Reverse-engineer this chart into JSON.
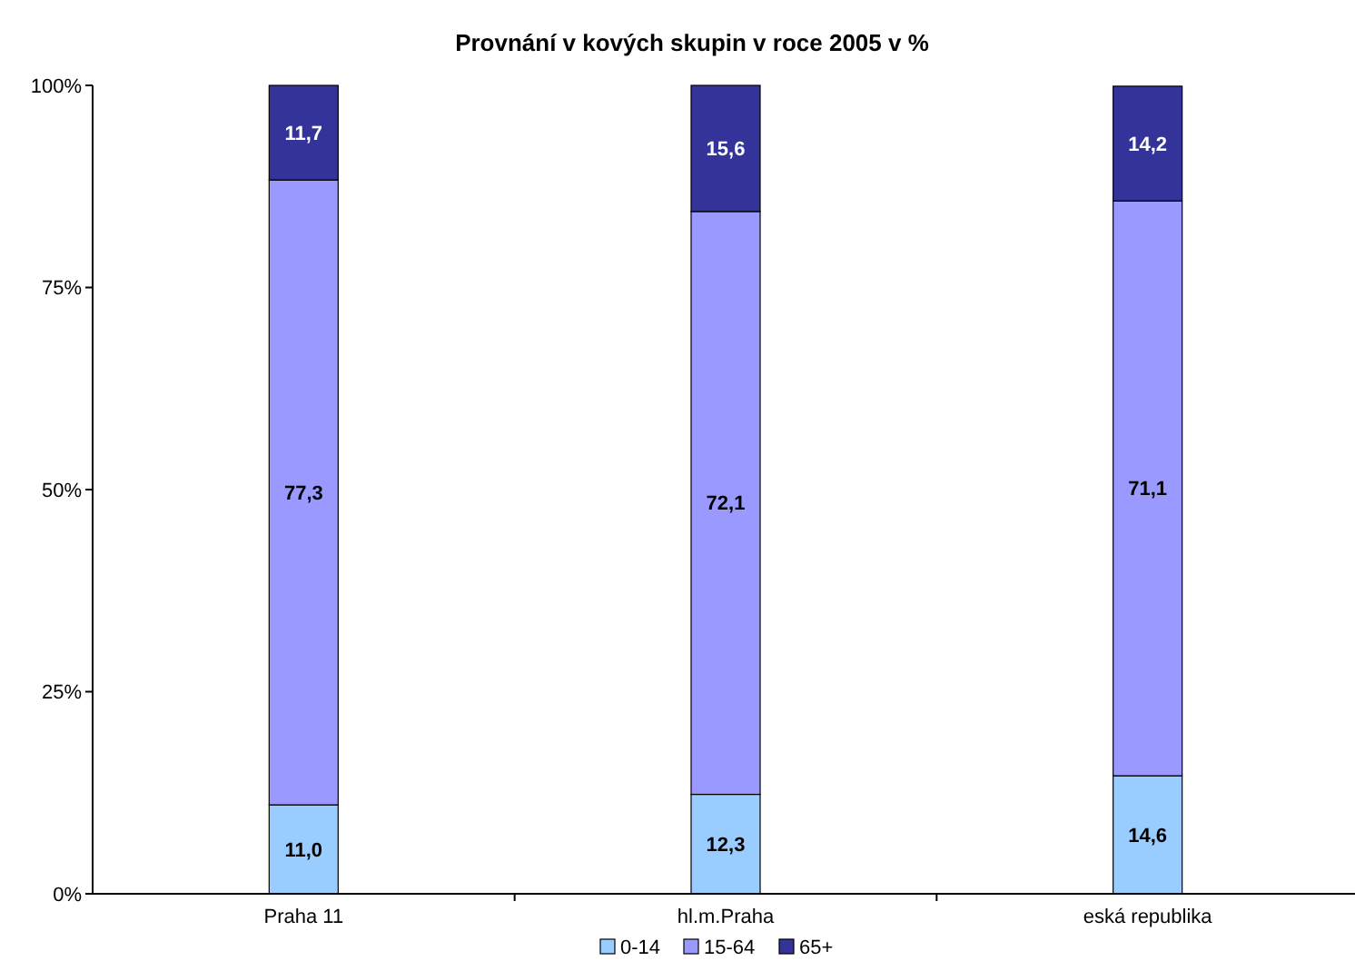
{
  "chart_data": {
    "type": "bar",
    "stacked": true,
    "title": "Provnání v  kových skupin v roce 2005 v %",
    "categories": [
      "Praha 11",
      "hl.m.Praha",
      "eská republika"
    ],
    "series": [
      {
        "name": "0-14",
        "color": "#99ccff",
        "values": [
          11.0,
          12.3,
          14.6
        ],
        "value_labels": [
          "11,0",
          "12,3",
          "14,6"
        ]
      },
      {
        "name": "15-64",
        "color": "#9999ff",
        "values": [
          77.3,
          72.1,
          71.1
        ],
        "value_labels": [
          "77,3",
          "72,1",
          "71,1"
        ]
      },
      {
        "name": "65+",
        "color": "#333399",
        "values": [
          11.7,
          15.6,
          14.2
        ],
        "value_labels": [
          "11,7",
          "15,6",
          "14,2"
        ]
      }
    ],
    "ylim": [
      0,
      100
    ],
    "yticks": [
      {
        "value": 0,
        "label": "0%"
      },
      {
        "value": 25,
        "label": "25%"
      },
      {
        "value": 50,
        "label": "50%"
      },
      {
        "value": 75,
        "label": "75%"
      },
      {
        "value": 100,
        "label": "100%"
      }
    ],
    "grid": false,
    "legend": "bottom"
  }
}
